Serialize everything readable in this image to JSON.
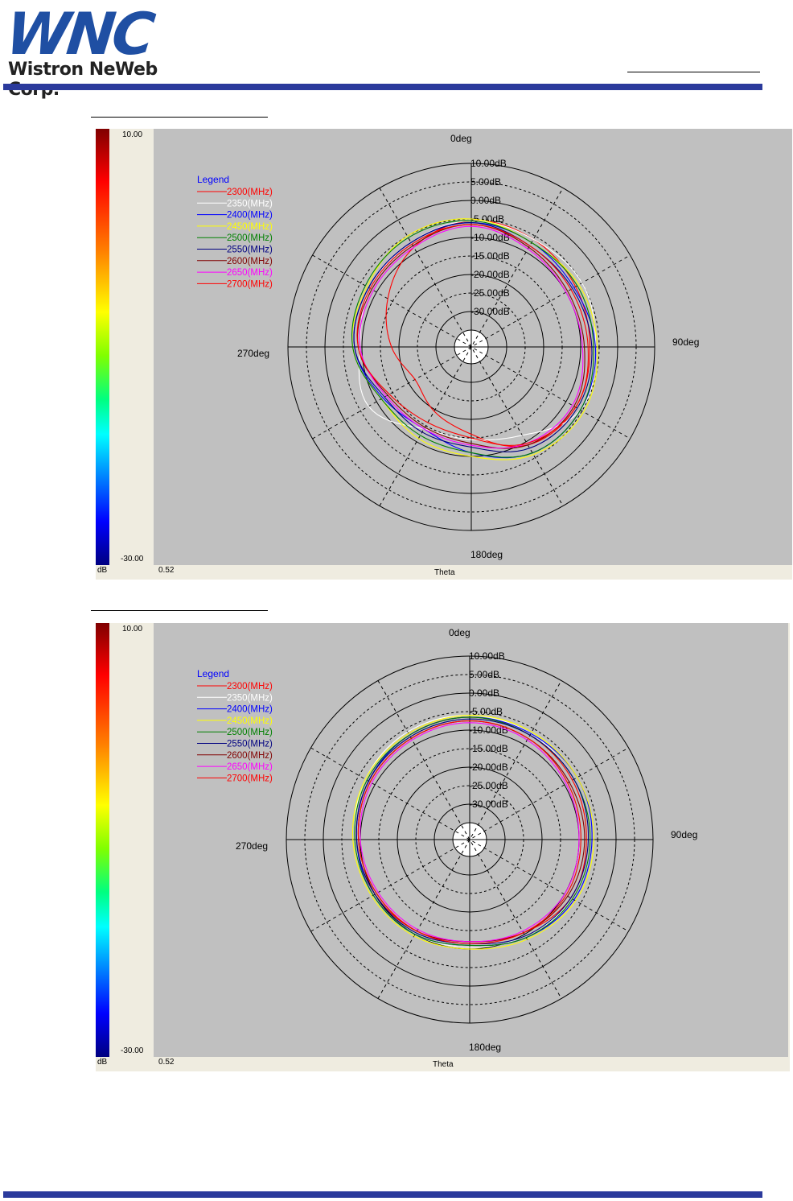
{
  "header": {
    "logo_text": "WNC",
    "logo_subtitle": "Wistron NeWeb Corp.",
    "brand_color": "#2b3a9c"
  },
  "colors": {
    "plot_background": "#c0c0c0",
    "panel_background": "#efece0",
    "header_band": "#2b3a9c",
    "legend_title": "#0000ff"
  },
  "charts": [
    {
      "colorbar": {
        "max_label": "10.00",
        "min_label": "-30.00",
        "unit_label": "dB",
        "value_label": "0.52"
      },
      "angle_labels": {
        "top": "0deg",
        "right": "90deg",
        "bottom": "180deg",
        "left": "270deg"
      },
      "ring_labels": [
        "10.00dB",
        "5.00dB",
        "0.00dB",
        "-5.00dB",
        "-10.00dB",
        "-15.00dB",
        "-20.00dB",
        "-25.00dB",
        "-30.00dB"
      ],
      "axis_title": "Theta",
      "legend_title": "Legend"
    },
    {
      "colorbar": {
        "max_label": "10.00",
        "min_label": "-30.00",
        "unit_label": "dB",
        "value_label": "0.52"
      },
      "angle_labels": {
        "top": "0deg",
        "right": "90deg",
        "bottom": "180deg",
        "left": "270deg"
      },
      "ring_labels": [
        "10.00dB",
        "5.00dB",
        "0.00dB",
        "-5.00dB",
        "-10.00dB",
        "-15.00dB",
        "-20.00dB",
        "-25.00dB",
        "-30.00dB"
      ],
      "axis_title": "Theta",
      "legend_title": "Legend"
    }
  ],
  "chart_data": [
    {
      "type": "polar",
      "r_range_db": [
        -35,
        10
      ],
      "theta_unit": "deg",
      "theta_step": 30,
      "series": [
        {
          "name": "2300(MHz)",
          "color": "#ff0000",
          "gain_db": [
            -5.5,
            -6.0,
            -7.0,
            -7.5,
            -7.0,
            -9.0,
            -16.0,
            -19.5,
            -22.0,
            -18.0,
            -13.5,
            -8.5
          ]
        },
        {
          "name": "2350(MHz)",
          "color": "#ffffff",
          "gain_db": [
            -5.5,
            -6.0,
            -5.0,
            -6.0,
            -5.5,
            -12.0,
            -14.5,
            -14.0,
            -7.5,
            -9.5,
            -8.0,
            -7.0
          ]
        },
        {
          "name": "2400(MHz)",
          "color": "#0000ff",
          "gain_db": [
            -6.0,
            -7.0,
            -7.5,
            -6.0,
            -5.5,
            -6.5,
            -11.0,
            -14.0,
            -12.0,
            -8.0,
            -7.5,
            -7.0
          ]
        },
        {
          "name": "2450(MHz)",
          "color": "#ffff00",
          "gain_db": [
            -5.0,
            -7.0,
            -6.0,
            -5.5,
            -4.5,
            -6.0,
            -10.0,
            -11.0,
            -11.5,
            -7.5,
            -7.0,
            -5.0
          ]
        },
        {
          "name": "2500(MHz)",
          "color": "#008000",
          "gain_db": [
            -5.5,
            -7.0,
            -6.5,
            -6.5,
            -5.5,
            -6.5,
            -11.0,
            -12.0,
            -11.5,
            -7.5,
            -6.5,
            -5.5
          ]
        },
        {
          "name": "2550(MHz)",
          "color": "#000080",
          "gain_db": [
            -6.0,
            -8.0,
            -8.0,
            -7.0,
            -6.5,
            -8.0,
            -12.5,
            -13.0,
            -12.5,
            -8.0,
            -7.5,
            -7.0
          ]
        },
        {
          "name": "2600(MHz)",
          "color": "#800000",
          "gain_db": [
            -6.5,
            -8.5,
            -9.5,
            -9.0,
            -7.5,
            -9.0,
            -13.5,
            -14.5,
            -13.5,
            -9.0,
            -8.5,
            -8.0
          ]
        },
        {
          "name": "2650(MHz)",
          "color": "#ff00ff",
          "gain_db": [
            -7.0,
            -9.0,
            -10.0,
            -9.5,
            -8.0,
            -9.5,
            -13.0,
            -14.0,
            -13.0,
            -9.5,
            -9.0,
            -8.5
          ]
        },
        {
          "name": "2700(MHz)",
          "color": "#ff0000",
          "gain_db": [
            -6.5,
            -8.0,
            -8.5,
            -8.0,
            -7.0,
            -9.5,
            -15.0,
            -16.0,
            -14.0,
            -9.0,
            -8.0,
            -7.5
          ]
        }
      ]
    },
    {
      "type": "polar",
      "r_range_db": [
        -35,
        10
      ],
      "theta_unit": "deg",
      "theta_step": 30,
      "series": [
        {
          "name": "2300(MHz)",
          "color": "#ff0000",
          "gain_db": [
            -6.5,
            -7.0,
            -7.5,
            -8.0,
            -8.0,
            -10.5,
            -12.0,
            -11.0,
            -10.0,
            -9.0,
            -8.0,
            -7.0
          ]
        },
        {
          "name": "2350(MHz)",
          "color": "#ffffff",
          "gain_db": [
            -6.0,
            -6.5,
            -7.0,
            -7.0,
            -7.5,
            -9.5,
            -10.5,
            -10.0,
            -9.5,
            -8.5,
            -7.0,
            -6.0
          ]
        },
        {
          "name": "2400(MHz)",
          "color": "#0000ff",
          "gain_db": [
            -6.5,
            -6.5,
            -6.0,
            -6.5,
            -7.0,
            -9.0,
            -11.0,
            -10.0,
            -9.5,
            -9.0,
            -8.0,
            -7.0
          ]
        },
        {
          "name": "2450(MHz)",
          "color": "#ffff00",
          "gain_db": [
            -6.0,
            -6.0,
            -6.0,
            -6.0,
            -6.5,
            -8.5,
            -10.0,
            -9.5,
            -9.0,
            -8.0,
            -7.0,
            -6.5
          ]
        },
        {
          "name": "2500(MHz)",
          "color": "#008000",
          "gain_db": [
            -6.5,
            -7.0,
            -7.0,
            -7.0,
            -7.5,
            -9.0,
            -11.0,
            -10.0,
            -9.5,
            -8.5,
            -7.5,
            -7.0
          ]
        },
        {
          "name": "2550(MHz)",
          "color": "#000080",
          "gain_db": [
            -7.0,
            -7.0,
            -7.0,
            -7.5,
            -8.0,
            -9.5,
            -11.5,
            -10.5,
            -10.0,
            -9.0,
            -8.0,
            -7.5
          ]
        },
        {
          "name": "2600(MHz)",
          "color": "#800000",
          "gain_db": [
            -7.5,
            -8.0,
            -8.5,
            -8.5,
            -9.0,
            -10.5,
            -12.0,
            -11.0,
            -10.5,
            -9.5,
            -8.5,
            -8.0
          ]
        },
        {
          "name": "2650(MHz)",
          "color": "#ff00ff",
          "gain_db": [
            -8.0,
            -8.5,
            -9.5,
            -10.0,
            -10.0,
            -11.0,
            -12.0,
            -11.5,
            -11.0,
            -10.0,
            -9.0,
            -8.5
          ]
        },
        {
          "name": "2700(MHz)",
          "color": "#ff0000",
          "gain_db": [
            -7.5,
            -8.0,
            -9.0,
            -9.5,
            -9.5,
            -10.5,
            -11.5,
            -11.0,
            -10.5,
            -9.5,
            -8.5,
            -8.0
          ]
        }
      ]
    }
  ]
}
